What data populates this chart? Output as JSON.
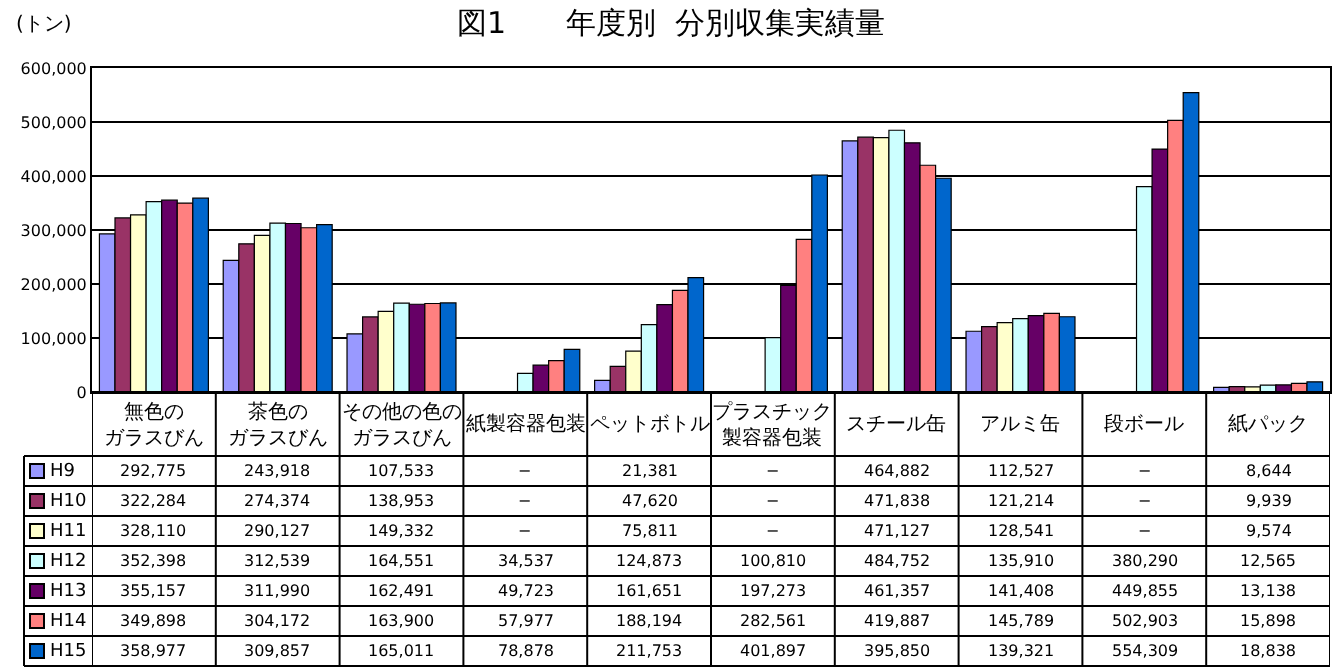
{
  "chart_data": {
    "type": "bar",
    "title": "図1　　年度別  分別収集実績量",
    "ylabel": "(トン)",
    "categories": [
      "無色のガラスびん",
      "茶色のガラスびん",
      "その他の色のガラスびん",
      "紙製容器包装",
      "ペットボトル",
      "プラスチック製容器包装",
      "スチール缶",
      "アルミ缶",
      "段ボール",
      "紙パック"
    ],
    "series": [
      {
        "name": "H9",
        "color": "#9999ff",
        "values": [
          292775,
          243918,
          107533,
          null,
          21381,
          null,
          464882,
          112527,
          null,
          8644
        ],
        "value_labels": [
          "292,775",
          "243,918",
          "107,533",
          "−",
          "21,381",
          "−",
          "464,882",
          "112,527",
          "−",
          "8,644"
        ]
      },
      {
        "name": "H10",
        "color": "#993366",
        "values": [
          322284,
          274374,
          138953,
          null,
          47620,
          null,
          471838,
          121214,
          null,
          9939
        ],
        "value_labels": [
          "322,284",
          "274,374",
          "138,953",
          "−",
          "47,620",
          "−",
          "471,838",
          "121,214",
          "−",
          "9,939"
        ]
      },
      {
        "name": "H11",
        "color": "#ffffcc",
        "values": [
          328110,
          290127,
          149332,
          null,
          75811,
          null,
          471127,
          128541,
          null,
          9574
        ],
        "value_labels": [
          "328,110",
          "290,127",
          "149,332",
          "−",
          "75,811",
          "−",
          "471,127",
          "128,541",
          "−",
          "9,574"
        ]
      },
      {
        "name": "H12",
        "color": "#ccffff",
        "values": [
          352398,
          312539,
          164551,
          34537,
          124873,
          100810,
          484752,
          135910,
          380290,
          12565
        ],
        "value_labels": [
          "352,398",
          "312,539",
          "164,551",
          "34,537",
          "124,873",
          "100,810",
          "484,752",
          "135,910",
          "380,290",
          "12,565"
        ]
      },
      {
        "name": "H13",
        "color": "#660066",
        "values": [
          355157,
          311990,
          162491,
          49723,
          161651,
          197273,
          461357,
          141408,
          449855,
          13138
        ],
        "value_labels": [
          "355,157",
          "311,990",
          "162,491",
          "49,723",
          "161,651",
          "197,273",
          "461,357",
          "141,408",
          "449,855",
          "13,138"
        ]
      },
      {
        "name": "H14",
        "color": "#ff8080",
        "values": [
          349898,
          304172,
          163900,
          57977,
          188194,
          282561,
          419887,
          145789,
          502903,
          15898
        ],
        "value_labels": [
          "349,898",
          "304,172",
          "163,900",
          "57,977",
          "188,194",
          "282,561",
          "419,887",
          "145,789",
          "502,903",
          "15,898"
        ]
      },
      {
        "name": "H15",
        "color": "#0066cc",
        "values": [
          358977,
          309857,
          165011,
          78878,
          211753,
          401897,
          395850,
          139321,
          554309,
          18838
        ],
        "value_labels": [
          "358,977",
          "309,857",
          "165,011",
          "78,878",
          "211,753",
          "401,897",
          "395,850",
          "139,321",
          "554,309",
          "18,838"
        ]
      }
    ],
    "ylim": [
      0,
      600000
    ],
    "yticks": [
      {
        "value": 0,
        "label": "0"
      },
      {
        "value": 100000,
        "label": "100,000"
      },
      {
        "value": 200000,
        "label": "200,000"
      },
      {
        "value": 300000,
        "label": "300,000"
      },
      {
        "value": 400000,
        "label": "400,000"
      },
      {
        "value": 500000,
        "label": "500,000"
      },
      {
        "value": 600000,
        "label": "600,000"
      }
    ],
    "grid": "y",
    "legend": "bottom"
  }
}
